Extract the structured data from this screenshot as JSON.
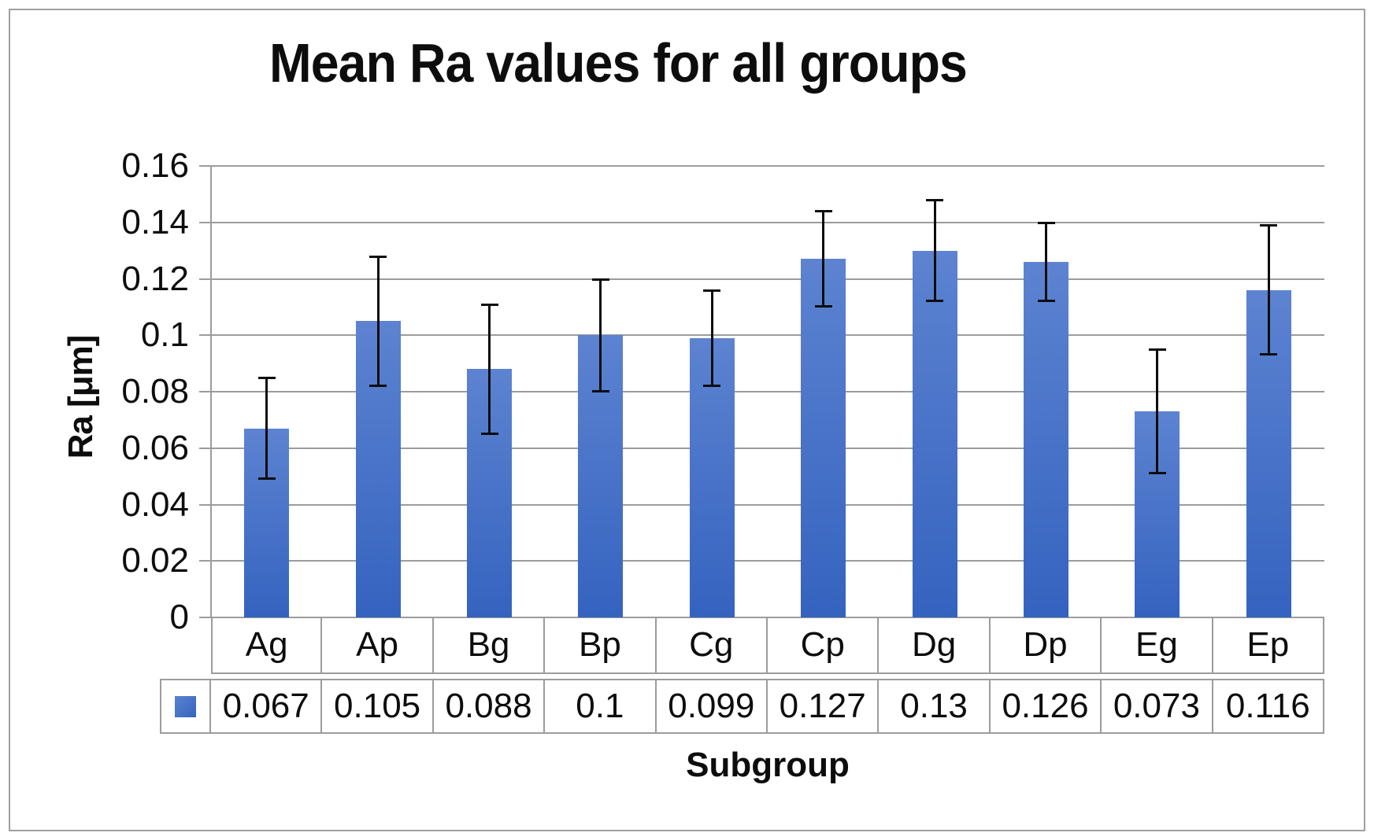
{
  "chart_data": {
    "type": "bar",
    "title": "Mean Ra values for all groups",
    "xlabel": "Subgroup",
    "ylabel": "Ra [μm]",
    "categories": [
      "Ag",
      "Ap",
      "Bg",
      "Bp",
      "Cg",
      "Cp",
      "Dg",
      "Dp",
      "Eg",
      "Ep"
    ],
    "values": [
      0.067,
      0.105,
      0.088,
      0.1,
      0.099,
      0.127,
      0.13,
      0.126,
      0.073,
      0.116
    ],
    "error_bars_plus_minus": [
      0.018,
      0.023,
      0.023,
      0.02,
      0.017,
      0.017,
      0.018,
      0.014,
      0.022,
      0.023
    ],
    "data_table_values": [
      "0.067",
      "0.105",
      "0.088",
      "0.1",
      "0.099",
      "0.127",
      "0.13",
      "0.126",
      "0.073",
      "0.116"
    ],
    "y_tick_labels": [
      "0.16",
      "0.14",
      "0.12",
      "0.1",
      "0.08",
      "0.06",
      "0.04",
      "0.02",
      "0"
    ],
    "ylim": [
      0,
      0.16
    ],
    "grid": true,
    "legend_position": "data-table-left-swatch",
    "colors": {
      "bar_gradient_top": "#5d83d1",
      "bar_gradient_bottom": "#3463bf",
      "gridline": "#9c9c9c",
      "table_border": "#9c9c9c",
      "error_bar": "#0d0d0d",
      "frame_border": "#a0a0a0",
      "background": "#ffffff",
      "text": "#0d0d0d"
    }
  }
}
